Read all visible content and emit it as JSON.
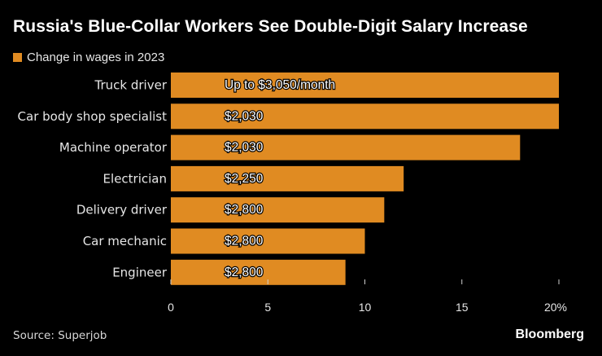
{
  "header": {
    "title": "Russia's Blue-Collar Workers See Double-Digit Salary Increase"
  },
  "legend": {
    "label": "Change in wages in 2023",
    "color": "#e08b22"
  },
  "footer": {
    "source": "Source: Superjob",
    "brand": "Bloomberg"
  },
  "chart_data": {
    "type": "bar",
    "orientation": "horizontal",
    "title": "Russia's Blue-Collar Workers See Double-Digit Salary Increase",
    "series_name": "Change in wages in 2023",
    "categories": [
      "Truck driver",
      "Car body shop specialist",
      "Machine operator",
      "Electrician",
      "Delivery driver",
      "Car mechanic",
      "Engineer"
    ],
    "values": [
      20,
      20,
      18,
      12,
      11,
      10,
      9
    ],
    "bar_labels": [
      "Up to $3,050/month",
      "$2,030",
      "$2,030",
      "$2,250",
      "$2,800",
      "$2,800",
      "$2,800"
    ],
    "xlim": [
      0,
      20
    ],
    "ticks": [
      0,
      5,
      10,
      15,
      20
    ],
    "tick_labels": [
      "0",
      "5",
      "10",
      "15",
      "20%"
    ],
    "xlabel": "",
    "ylabel": "",
    "grid": false,
    "bar_color": "#e08b22"
  }
}
